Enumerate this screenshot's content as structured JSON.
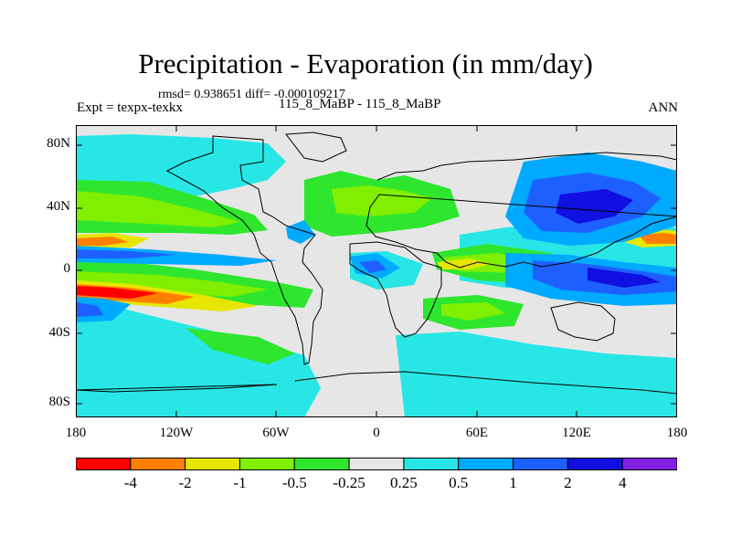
{
  "title": "Precipitation - Evaporation (in mm/day)",
  "stats": "rmsd= 0.938651 diff= -0.000109217",
  "experiment": "Expt = texpx-texkx",
  "subtitle": "115_8_MaBP - 115_8_MaBP",
  "season": "ANN",
  "map": {
    "lat_ticks": [
      "80N",
      "40N",
      "0",
      "40S",
      "80S"
    ],
    "lon_ticks": [
      "180",
      "120W",
      "60W",
      "0",
      "60E",
      "120E",
      "180"
    ]
  },
  "colorbar": {
    "colors": [
      "#ff0000",
      "#ff8000",
      "#e6e600",
      "#80f000",
      "#2ee62e",
      "#e6e6e6",
      "#28e6e6",
      "#00aaff",
      "#1e60ff",
      "#1010e0",
      "#8020e0"
    ],
    "labels": [
      "-4",
      "-2",
      "-1",
      "-0.5",
      "-0.25",
      "0.25",
      "0.5",
      "1",
      "2",
      "4"
    ]
  },
  "chart_data": {
    "type": "heatmap",
    "variable": "Precipitation - Evaporation",
    "units": "mm/day",
    "experiment": "texpx-texkx",
    "period": "ANN",
    "rmsd": 0.938651,
    "diff": -0.000109217,
    "lon_range": [
      -180,
      180
    ],
    "lat_range": [
      -90,
      90
    ],
    "contour_levels": [
      -4,
      -2,
      -1,
      -0.5,
      -0.25,
      0.25,
      0.5,
      1,
      2,
      4
    ]
  }
}
